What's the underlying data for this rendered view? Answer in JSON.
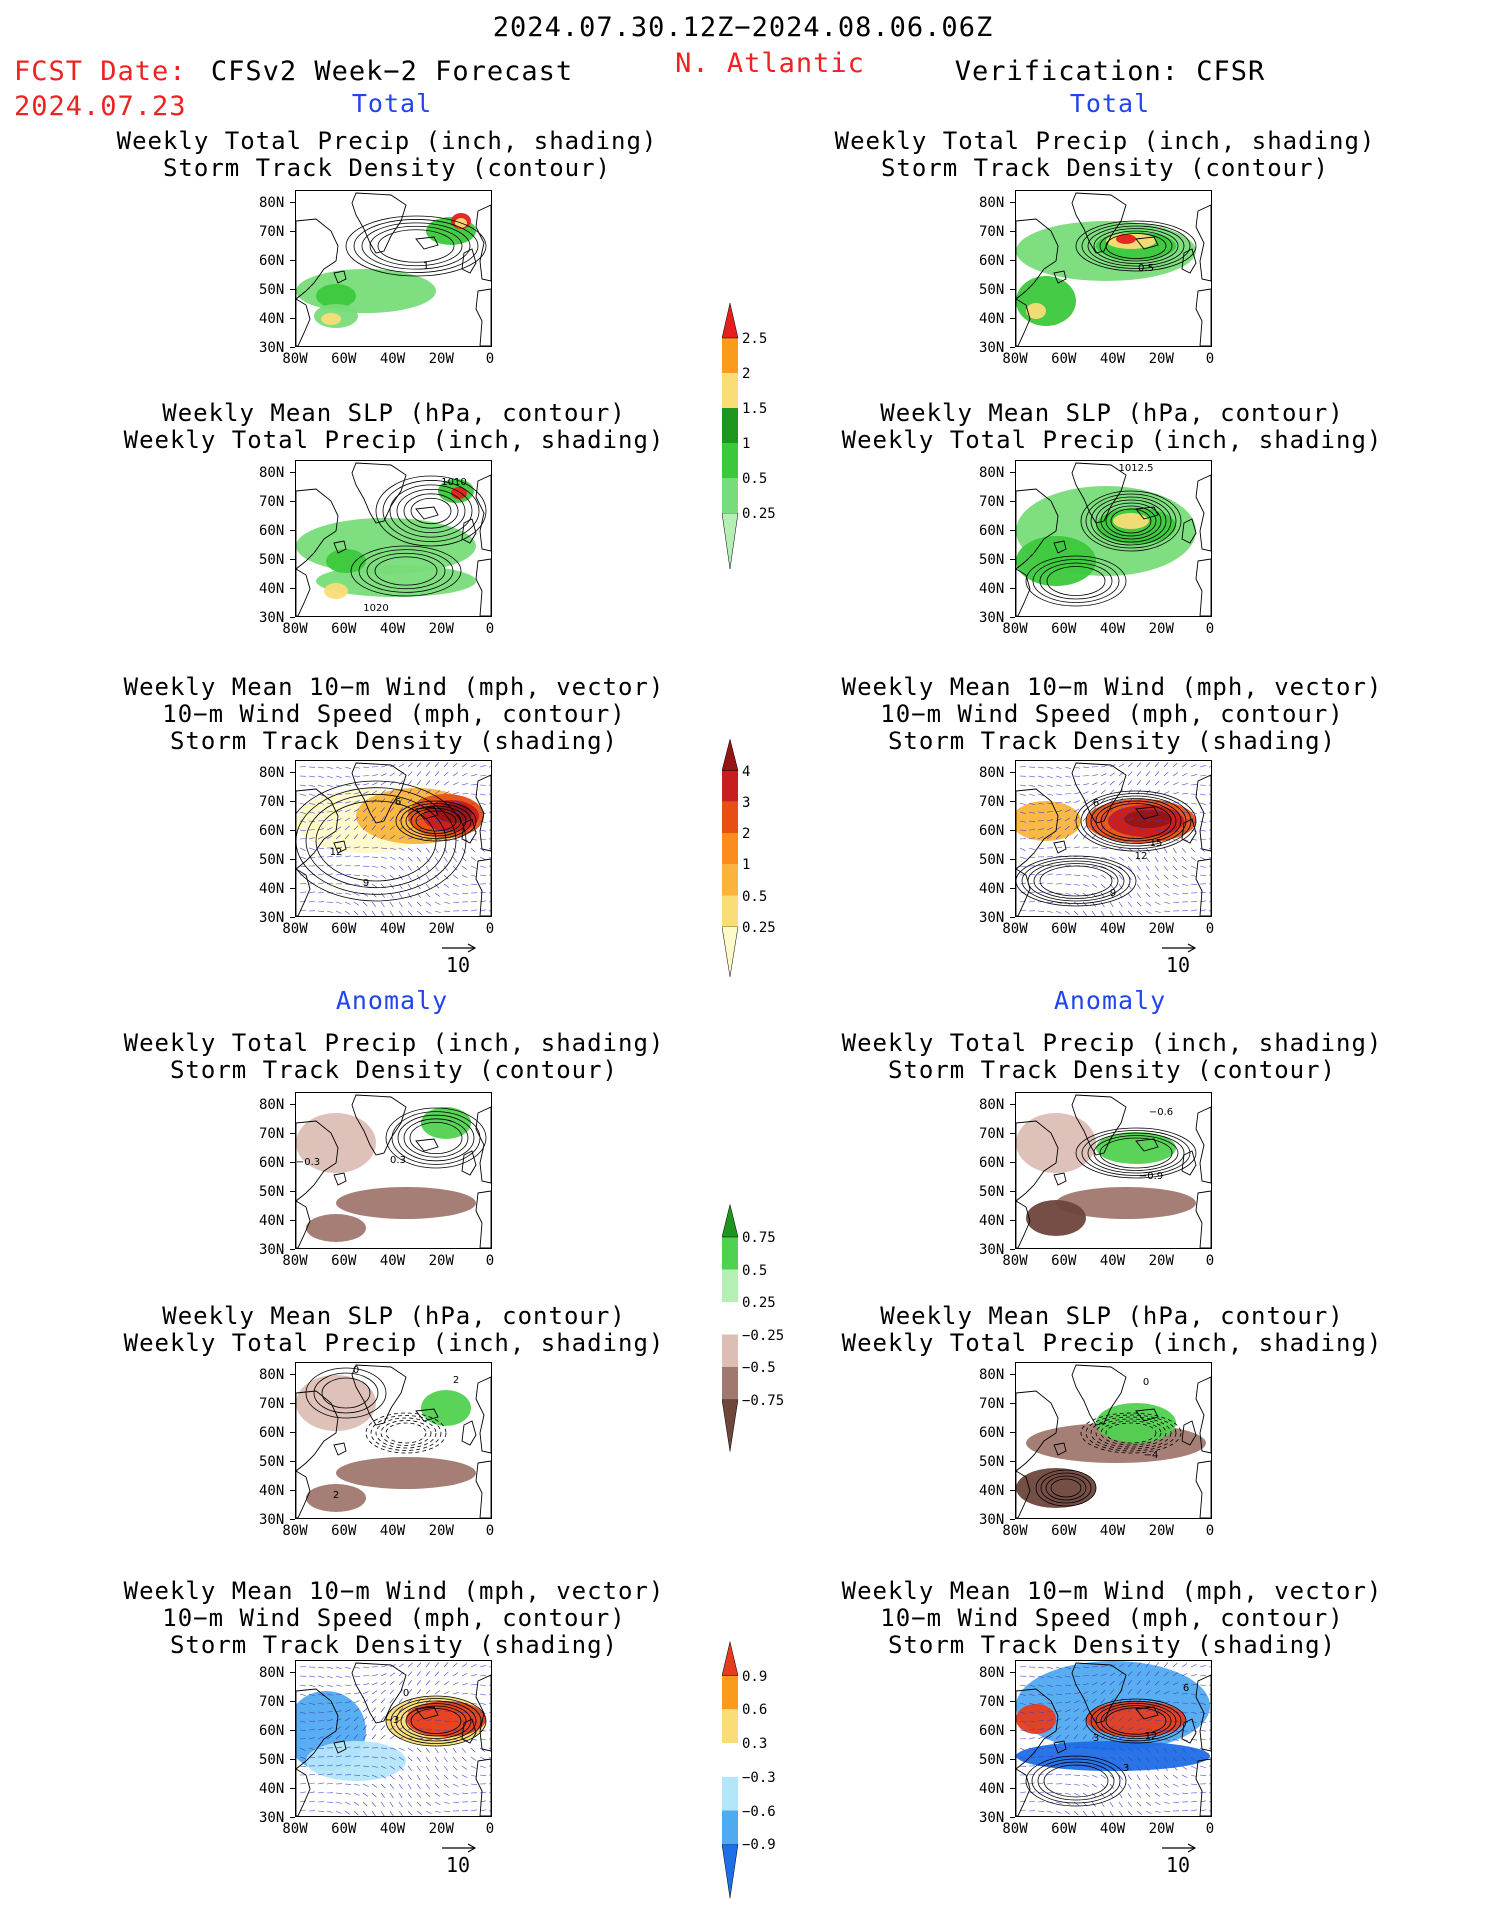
{
  "header": {
    "period": "2024.07.30.12Z−2024.08.06.06Z",
    "fcst_label": "FCST Date:",
    "fcst_date": "2024.07.23",
    "model": "CFSv2 Week−2 Forecast",
    "region": "N. Atlantic",
    "verification": "Verification: CFSR"
  },
  "sections": {
    "total": "Total",
    "anomaly": "Anomaly"
  },
  "titles": {
    "precip_track": [
      "Weekly Total Precip (inch, shading)",
      "Storm Track Density (contour)"
    ],
    "slp_precip": [
      "Weekly Mean SLP (hPa, contour)",
      "Weekly Total Precip (inch, shading)"
    ],
    "wind_track": [
      "Weekly Mean 10−m Wind (mph, vector)",
      "10−m Wind Speed (mph, contour)",
      "Storm Track Density (shading)"
    ]
  },
  "axes": {
    "lat_ticks": [
      "80N",
      "70N",
      "60N",
      "50N",
      "40N",
      "30N"
    ],
    "lon_ticks": [
      "80W",
      "60W",
      "40W",
      "20W",
      "0"
    ]
  },
  "vector_ref": "10",
  "colorbars": {
    "total_precip": {
      "colors": [
        "#b4f0b4",
        "#78dc78",
        "#3cc83c",
        "#1e961e",
        "#fadc78",
        "#fa9b1e",
        "#e61e1e"
      ],
      "labels": [
        "0.25",
        "0.5",
        "1",
        "1.5",
        "2",
        "2.5"
      ]
    },
    "storm_density": {
      "colors": [
        "#fffac8",
        "#fadc78",
        "#fab43c",
        "#fa8c1e",
        "#e65014",
        "#c81e1e",
        "#961414"
      ],
      "labels": [
        "0.25",
        "0.5",
        "1",
        "2",
        "3",
        "4"
      ]
    },
    "precip_anom": {
      "colors": [
        "#6e463c",
        "#a0786e",
        "#dcbeb4",
        "#ffffff",
        "#b4f0b4",
        "#50d250",
        "#1e961e"
      ],
      "labels": [
        "−0.75",
        "−0.5",
        "−0.25",
        "0.25",
        "0.5",
        "0.75"
      ]
    },
    "density_anom": {
      "colors": [
        "#1e6ee6",
        "#50aaf0",
        "#b4e6fa",
        "#ffffff",
        "#fadc78",
        "#fa9b1e",
        "#e63c1e"
      ],
      "labels": [
        "−0.9",
        "−0.6",
        "−0.3",
        "0.3",
        "0.6",
        "0.9"
      ]
    }
  },
  "contour_labels": {
    "fc_total_precip": "1",
    "vf_total_precip": "0.5",
    "fc_total_slp": "1010",
    "fc_total_slp_b": "1020",
    "vf_total_slp": "1012.5",
    "fc_total_wind": "6",
    "fc_total_wind_b": "12",
    "fc_total_wind_c": "9",
    "vf_total_wind": "6",
    "vf_total_wind_b": "15",
    "vf_total_wind_c": "12",
    "vf_total_wind_d": "9",
    "fc_anom_precip": "−0.3",
    "fc_anom_precip_b": "0.3",
    "vf_anom_precip": "−0.6",
    "vf_anom_precip_b": "−0.9",
    "fc_anom_slp": "0",
    "fc_anom_slp_b": "2",
    "fc_anom_slp_c": "2",
    "vf_anom_slp": "0",
    "vf_anom_slp_b": "−4",
    "fc_anom_wind": "0",
    "fc_anom_wind_b": "−3",
    "vf_anom_wind": "6",
    "vf_anom_wind_b": "3",
    "vf_anom_wind_c": "12",
    "vf_anom_wind_d": "3"
  },
  "colors": {
    "red_text": "#ee2222",
    "blue_text": "#2244ee",
    "land_outline": "#000000",
    "wind_vector": "#4040d0"
  }
}
